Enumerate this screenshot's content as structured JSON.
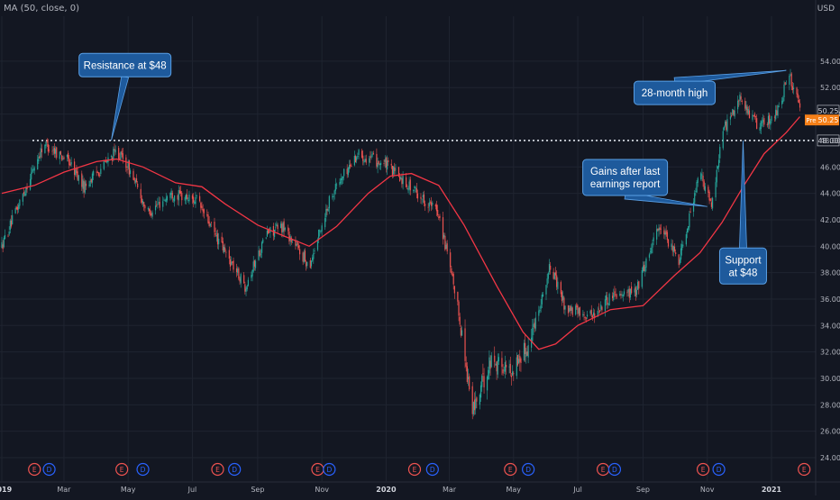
{
  "indicator_label": "MA (50, close, 0)",
  "currency": "USD",
  "colors": {
    "background": "#131722",
    "grid": "#1f2430",
    "up": "#26a69a",
    "down": "#ef5350",
    "ma": "#f23645",
    "callout_fill": "#1e5a9c",
    "callout_border": "#5aa0e6",
    "callout_text": "#ffffff",
    "event_earnings": "#ef5350",
    "event_dividend": "#2962ff",
    "price_badge": "#f57f17"
  },
  "chart_data": {
    "type": "candlestick",
    "title": "",
    "series": [
      {
        "name": "MA (50, close, 0)",
        "kind": "line",
        "values": "moving-average-of-close"
      }
    ],
    "y_ticks": [
      "24.00",
      "26.00",
      "28.00",
      "30.00",
      "32.00",
      "34.00",
      "36.00",
      "38.00",
      "40.00",
      "42.00",
      "44.00",
      "46.00",
      "48.00",
      "50.00",
      "52.00",
      "54.00"
    ],
    "ylim": [
      24,
      55
    ],
    "x_ticks": [
      "2019",
      "Mar",
      "May",
      "Jul",
      "Sep",
      "Nov",
      "2020",
      "Mar",
      "May",
      "Jul",
      "Sep",
      "Nov",
      "2021"
    ],
    "bold_x_ticks": [
      "2019",
      "2020",
      "2021"
    ],
    "daily_path": [
      {
        "x": "2019-01-01",
        "y": 40
      },
      {
        "x": "2019-02-10",
        "y": 47.8
      },
      {
        "x": "2019-03-05",
        "y": 46.5
      },
      {
        "x": "2019-03-20",
        "y": 44.5
      },
      {
        "x": "2019-04-20",
        "y": 47.2
      },
      {
        "x": "2019-05-01",
        "y": 46
      },
      {
        "x": "2019-05-20",
        "y": 42.5
      },
      {
        "x": "2019-06-10",
        "y": 44
      },
      {
        "x": "2019-07-05",
        "y": 43.5
      },
      {
        "x": "2019-07-25",
        "y": 40.5
      },
      {
        "x": "2019-08-20",
        "y": 37
      },
      {
        "x": "2019-09-10",
        "y": 41
      },
      {
        "x": "2019-09-25",
        "y": 41.5
      },
      {
        "x": "2019-10-20",
        "y": 38.5
      },
      {
        "x": "2019-11-10",
        "y": 44
      },
      {
        "x": "2019-12-05",
        "y": 47
      },
      {
        "x": "2019-12-31",
        "y": 46.2
      },
      {
        "x": "2020-01-20",
        "y": 44.8
      },
      {
        "x": "2020-02-20",
        "y": 42.5
      },
      {
        "x": "2020-03-10",
        "y": 35
      },
      {
        "x": "2020-03-23",
        "y": 27.5
      },
      {
        "x": "2020-04-10",
        "y": 31.5
      },
      {
        "x": "2020-04-28",
        "y": 30.5
      },
      {
        "x": "2020-05-15",
        "y": 32.5
      },
      {
        "x": "2020-06-05",
        "y": 38.5
      },
      {
        "x": "2020-06-20",
        "y": 35.2
      },
      {
        "x": "2020-07-15",
        "y": 34.8
      },
      {
        "x": "2020-08-05",
        "y": 36.5
      },
      {
        "x": "2020-08-25",
        "y": 36.5
      },
      {
        "x": "2020-09-15",
        "y": 41.5
      },
      {
        "x": "2020-10-05",
        "y": 39
      },
      {
        "x": "2020-10-25",
        "y": 45.5
      },
      {
        "x": "2020-11-05",
        "y": 43
      },
      {
        "x": "2020-11-15",
        "y": 48.5
      },
      {
        "x": "2020-12-01",
        "y": 51.2
      },
      {
        "x": "2020-12-20",
        "y": 49
      },
      {
        "x": "2021-01-05",
        "y": 50
      },
      {
        "x": "2021-01-18",
        "y": 53
      },
      {
        "x": "2021-01-28",
        "y": 50.25
      }
    ],
    "moving_average": [
      {
        "x": "2019-01-01",
        "y": 44.0
      },
      {
        "x": "2019-02-01",
        "y": 44.6
      },
      {
        "x": "2019-03-01",
        "y": 45.6
      },
      {
        "x": "2019-04-01",
        "y": 46.4
      },
      {
        "x": "2019-04-20",
        "y": 46.6
      },
      {
        "x": "2019-05-15",
        "y": 46.0
      },
      {
        "x": "2019-06-15",
        "y": 44.8
      },
      {
        "x": "2019-07-10",
        "y": 44.5
      },
      {
        "x": "2019-08-01",
        "y": 43.2
      },
      {
        "x": "2019-09-01",
        "y": 41.6
      },
      {
        "x": "2019-09-25",
        "y": 40.8
      },
      {
        "x": "2019-10-20",
        "y": 40.0
      },
      {
        "x": "2019-11-15",
        "y": 41.5
      },
      {
        "x": "2019-12-15",
        "y": 44.0
      },
      {
        "x": "2020-01-05",
        "y": 45.3
      },
      {
        "x": "2020-01-25",
        "y": 45.5
      },
      {
        "x": "2020-02-20",
        "y": 44.6
      },
      {
        "x": "2020-03-15",
        "y": 41.6
      },
      {
        "x": "2020-04-15",
        "y": 37.0
      },
      {
        "x": "2020-05-10",
        "y": 33.5
      },
      {
        "x": "2020-05-25",
        "y": 32.2
      },
      {
        "x": "2020-06-10",
        "y": 32.6
      },
      {
        "x": "2020-07-01",
        "y": 34.0
      },
      {
        "x": "2020-08-01",
        "y": 35.2
      },
      {
        "x": "2020-09-01",
        "y": 35.5
      },
      {
        "x": "2020-10-01",
        "y": 37.8
      },
      {
        "x": "2020-10-25",
        "y": 39.5
      },
      {
        "x": "2020-11-15",
        "y": 41.8
      },
      {
        "x": "2020-12-05",
        "y": 44.5
      },
      {
        "x": "2020-12-25",
        "y": 47.0
      },
      {
        "x": "2021-01-15",
        "y": 48.6
      },
      {
        "x": "2021-01-28",
        "y": 49.8
      }
    ],
    "reference_line": {
      "y": 48.0,
      "label": "48.00"
    },
    "price_labels": [
      {
        "text": "50.25",
        "y": 50.25,
        "style": "last"
      },
      {
        "prefix": "Pre",
        "text": "50.25",
        "y": 49.55,
        "style": "pre"
      }
    ],
    "annotations": [
      {
        "lines": [
          "Resistance at $48"
        ],
        "box_anchor": {
          "x": "2019-04-28",
          "y": 53.7
        },
        "target": {
          "x": "2019-04-15",
          "y": 48.0
        }
      },
      {
        "lines": [
          "28-month high"
        ],
        "box_anchor": {
          "x": "2020-10-01",
          "y": 51.6
        },
        "target": {
          "x": "2021-01-15",
          "y": 53.3
        }
      },
      {
        "lines": [
          "Gains after last",
          "earnings report"
        ],
        "box_anchor": {
          "x": "2020-08-15",
          "y": 45.2
        },
        "target": {
          "x": "2020-11-01",
          "y": 43.0
        }
      },
      {
        "lines": [
          "Support",
          "at $48"
        ],
        "box_anchor": {
          "x": "2020-12-05",
          "y": 38.5
        },
        "target": {
          "x": "2020-12-05",
          "y": 48.0
        }
      }
    ],
    "events": [
      {
        "type": "E",
        "x": "2019-02-01"
      },
      {
        "type": "D",
        "x": "2019-02-15"
      },
      {
        "type": "E",
        "x": "2019-04-25"
      },
      {
        "type": "D",
        "x": "2019-05-15"
      },
      {
        "type": "E",
        "x": "2019-07-25"
      },
      {
        "type": "D",
        "x": "2019-08-10"
      },
      {
        "type": "E",
        "x": "2019-10-28"
      },
      {
        "type": "D",
        "x": "2019-11-08"
      },
      {
        "type": "E",
        "x": "2020-01-28"
      },
      {
        "type": "D",
        "x": "2020-02-14"
      },
      {
        "type": "E",
        "x": "2020-04-28"
      },
      {
        "type": "D",
        "x": "2020-05-15"
      },
      {
        "type": "E",
        "x": "2020-07-25"
      },
      {
        "type": "D",
        "x": "2020-08-05"
      },
      {
        "type": "E",
        "x": "2020-10-28"
      },
      {
        "type": "D",
        "x": "2020-11-12"
      },
      {
        "type": "E",
        "x": "2021-02-01"
      }
    ]
  }
}
